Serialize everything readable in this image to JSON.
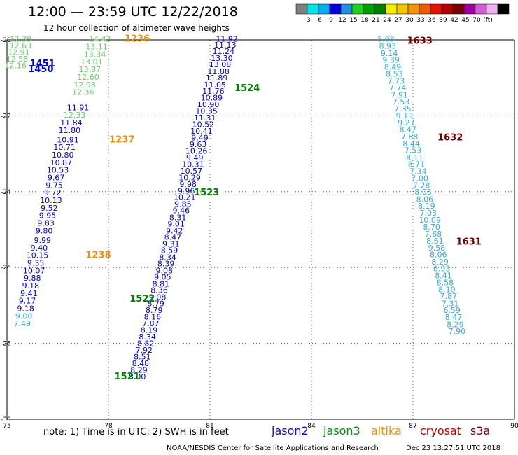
{
  "title": "12:00 — 23:59 UTC 12/22/2018",
  "subtitle": "12 hour collection of altimeter wave heights",
  "note": "note:  1) Time is in UTC;  2) SWH is in feet",
  "credit": "NOAA/NESDIS Center for Satellite Applications and Research",
  "timestamp": "Dec 23 13:27:51 UTC 2018",
  "satellites": [
    {
      "name": "jason2",
      "color": "#1010c8"
    },
    {
      "name": "jason3",
      "color": "#0a8a0a"
    },
    {
      "name": "altika",
      "color": "#f0900a"
    },
    {
      "name": "cryosat",
      "color": "#c00000"
    },
    {
      "name": "s3a",
      "color": "#7a0000"
    }
  ],
  "colorbar": {
    "colors": [
      "#7f7f7f",
      "#00e5e5",
      "#00b0f0",
      "#0000dc",
      "#2090e0",
      "#20d020",
      "#00a000",
      "#008000",
      "#f0f000",
      "#f0c800",
      "#f09600",
      "#f05a00",
      "#e01400",
      "#b40000",
      "#780000",
      "#a000a0",
      "#d060d0",
      "#f0b0f0",
      "#000000"
    ],
    "labels": [
      "3",
      "6",
      "9",
      "12",
      "15",
      "18",
      "21",
      "24",
      "27",
      "30",
      "33",
      "36",
      "39",
      "42",
      "45",
      "70",
      "(ft)"
    ]
  },
  "chart_data": {
    "type": "scatter",
    "xlabel": "",
    "ylabel": "",
    "xlim": [
      75,
      90
    ],
    "ylim": [
      -30,
      -20
    ],
    "xticks": [
      75,
      78,
      81,
      84,
      87,
      90
    ],
    "yticks": [
      -20,
      -22,
      -24,
      -26,
      -28,
      -30
    ],
    "grid": true,
    "series": [
      {
        "color": "#66cc66",
        "points": [
          [
            75.4,
            -20.05,
            "12.39"
          ],
          [
            75.4,
            -20.22,
            "12.63"
          ],
          [
            75.35,
            -20.4,
            "12.91"
          ],
          [
            75.3,
            -20.57,
            "12.58"
          ],
          [
            75.25,
            -20.75,
            "12.16"
          ]
        ]
      },
      {
        "color": "#66cc66",
        "points": [
          [
            77.75,
            -20.05,
            "14.42"
          ],
          [
            77.65,
            -20.25,
            "13.11"
          ],
          [
            77.6,
            -20.45,
            "13.34"
          ],
          [
            77.5,
            -20.65,
            "13.01"
          ],
          [
            77.45,
            -20.85,
            "13.87"
          ],
          [
            77.4,
            -21.05,
            "12.60"
          ],
          [
            77.3,
            -21.25,
            "12.98"
          ],
          [
            77.25,
            -21.45,
            "12.36"
          ],
          [
            77.0,
            -22.05,
            "12.33"
          ]
        ]
      },
      {
        "color": "#0000cc",
        "points": [
          [
            77.1,
            -21.85,
            "11.91"
          ],
          [
            76.9,
            -22.25,
            "11.84"
          ],
          [
            76.85,
            -22.45,
            "11.80"
          ],
          [
            76.8,
            -22.7,
            "10.91"
          ],
          [
            76.7,
            -22.9,
            "10.71"
          ],
          [
            76.65,
            -23.1,
            "10.80"
          ],
          [
            76.6,
            -23.3,
            "10.87"
          ],
          [
            76.5,
            -23.5,
            "10.53"
          ],
          [
            76.45,
            -23.7,
            "9.67"
          ],
          [
            76.4,
            -23.9,
            "9.75"
          ],
          [
            76.35,
            -24.1,
            "9.72"
          ],
          [
            76.3,
            -24.3,
            "10.13"
          ],
          [
            76.25,
            -24.5,
            "9.52"
          ],
          [
            76.2,
            -24.7,
            "9.95"
          ],
          [
            76.15,
            -24.9,
            "9.83"
          ],
          [
            76.1,
            -25.1,
            "9.80"
          ],
          [
            76.05,
            -25.35,
            "9.99"
          ],
          [
            75.95,
            -25.55,
            "9.40"
          ],
          [
            75.9,
            -25.75,
            "10.15"
          ],
          [
            75.85,
            -25.95,
            "9.35"
          ],
          [
            75.8,
            -26.15,
            "10.07"
          ],
          [
            75.75,
            -26.35,
            "9.88"
          ],
          [
            75.7,
            -26.55,
            "9.18"
          ],
          [
            75.65,
            -26.75,
            "9.41"
          ],
          [
            75.6,
            -26.95,
            "9.17"
          ],
          [
            75.55,
            -27.15,
            "9.18"
          ]
        ]
      },
      {
        "color": "#33aadd",
        "points": [
          [
            75.5,
            -27.35,
            "9.00"
          ],
          [
            75.45,
            -27.55,
            "7.49"
          ]
        ]
      },
      {
        "color": "#0000cc",
        "points": [
          [
            81.5,
            -20.05,
            "11.92"
          ],
          [
            81.45,
            -20.2,
            "11.13"
          ],
          [
            81.4,
            -20.37,
            "11.24"
          ],
          [
            81.35,
            -20.55,
            "13.30"
          ],
          [
            81.3,
            -20.72,
            "13.08"
          ],
          [
            81.25,
            -20.9,
            "11.88"
          ],
          [
            81.2,
            -21.07,
            "11.89"
          ],
          [
            81.15,
            -21.25,
            "11.05"
          ],
          [
            81.1,
            -21.42,
            "11.76"
          ],
          [
            81.05,
            -21.6,
            "10.89"
          ],
          [
            80.95,
            -21.77,
            "10.90"
          ],
          [
            80.9,
            -21.95,
            "10.35"
          ],
          [
            80.85,
            -22.12,
            "11.31"
          ],
          [
            80.8,
            -22.3,
            "10.52"
          ],
          [
            80.75,
            -22.47,
            "10.41"
          ],
          [
            80.7,
            -22.65,
            "9.49"
          ],
          [
            80.65,
            -22.82,
            "9.63"
          ],
          [
            80.6,
            -23.0,
            "10.26"
          ],
          [
            80.55,
            -23.17,
            "9.49"
          ],
          [
            80.5,
            -23.35,
            "10.31"
          ],
          [
            80.45,
            -23.52,
            "10.57"
          ],
          [
            80.4,
            -23.7,
            "10.29"
          ],
          [
            80.35,
            -23.87,
            "9.98"
          ],
          [
            80.3,
            -24.05,
            "9.96"
          ],
          [
            80.25,
            -24.22,
            "10.21"
          ],
          [
            80.2,
            -24.4,
            "9.85"
          ],
          [
            80.15,
            -24.57,
            "9.46"
          ],
          [
            80.05,
            -24.75,
            "8.31"
          ],
          [
            80.0,
            -24.92,
            "9.01"
          ],
          [
            79.95,
            -25.1,
            "9.42"
          ],
          [
            79.9,
            -25.27,
            "8.47"
          ],
          [
            79.85,
            -25.45,
            "9.31"
          ],
          [
            79.8,
            -25.62,
            "8.59"
          ],
          [
            79.75,
            -25.8,
            "8.34"
          ],
          [
            79.7,
            -25.97,
            "8.39"
          ],
          [
            79.65,
            -26.15,
            "9.08"
          ],
          [
            79.6,
            -26.32,
            "9.05"
          ],
          [
            79.55,
            -26.5,
            "8.81"
          ],
          [
            79.5,
            -26.67,
            "8.36"
          ],
          [
            79.45,
            -26.85,
            "9.08"
          ],
          [
            79.4,
            -27.02,
            "8.79"
          ],
          [
            79.35,
            -27.2,
            "8.79"
          ],
          [
            79.3,
            -27.37,
            "8.16"
          ],
          [
            79.25,
            -27.55,
            "7.87"
          ],
          [
            79.2,
            -27.72,
            "8.19"
          ],
          [
            79.15,
            -27.9,
            "8.34"
          ],
          [
            79.1,
            -28.07,
            "8.82"
          ],
          [
            79.05,
            -28.25,
            "7.92"
          ],
          [
            79.0,
            -28.42,
            "8.51"
          ],
          [
            78.95,
            -28.6,
            "8.48"
          ],
          [
            78.9,
            -28.77,
            "8.29"
          ],
          [
            78.85,
            -28.95,
            "8.00"
          ]
        ]
      },
      {
        "color": "#33aadd",
        "points": [
          [
            86.2,
            -20.05,
            "8.08"
          ],
          [
            86.25,
            -20.23,
            "8.93"
          ],
          [
            86.3,
            -20.42,
            "9.14"
          ],
          [
            86.35,
            -20.6,
            "9.39"
          ],
          [
            86.4,
            -20.78,
            "8.49"
          ],
          [
            86.45,
            -20.97,
            "8.53"
          ],
          [
            86.5,
            -21.15,
            "7.73"
          ],
          [
            86.55,
            -21.33,
            "7.74"
          ],
          [
            86.6,
            -21.52,
            "7.91"
          ],
          [
            86.65,
            -21.7,
            "7.53"
          ],
          [
            86.7,
            -21.88,
            "7.35"
          ],
          [
            86.75,
            -22.07,
            "9.19"
          ],
          [
            86.8,
            -22.25,
            "9.27"
          ],
          [
            86.85,
            -22.43,
            "8.47"
          ],
          [
            86.9,
            -22.62,
            "7.88"
          ],
          [
            86.95,
            -22.8,
            "8.44"
          ],
          [
            87.0,
            -22.98,
            "7.53"
          ],
          [
            87.05,
            -23.17,
            "8.11"
          ],
          [
            87.1,
            -23.35,
            "8.71"
          ],
          [
            87.15,
            -23.53,
            "7.34"
          ],
          [
            87.2,
            -23.72,
            "7.00"
          ],
          [
            87.25,
            -23.9,
            "7.28"
          ],
          [
            87.3,
            -24.08,
            "8.03"
          ],
          [
            87.35,
            -24.27,
            "8.06"
          ],
          [
            87.4,
            -24.45,
            "8.19"
          ],
          [
            87.45,
            -24.63,
            "7.03"
          ],
          [
            87.5,
            -24.82,
            "10.09"
          ],
          [
            87.55,
            -25.0,
            "8.70"
          ],
          [
            87.6,
            -25.18,
            "7.68"
          ],
          [
            87.65,
            -25.37,
            "8.61"
          ],
          [
            87.7,
            -25.55,
            "9.58"
          ],
          [
            87.75,
            -25.73,
            "8.06"
          ],
          [
            87.8,
            -25.92,
            "8.29"
          ],
          [
            87.85,
            -26.1,
            "6.93"
          ],
          [
            87.9,
            -26.28,
            "8.41"
          ],
          [
            87.95,
            -26.47,
            "8.58"
          ],
          [
            88.0,
            -26.65,
            "8.10"
          ],
          [
            88.05,
            -26.83,
            "7.87"
          ],
          [
            88.1,
            -27.02,
            "7.31"
          ],
          [
            88.15,
            -27.2,
            "6.59"
          ],
          [
            88.2,
            -27.38,
            "8.47"
          ],
          [
            88.25,
            -27.57,
            "8.29"
          ],
          [
            88.3,
            -27.75,
            "7.90"
          ]
        ]
      }
    ],
    "annotations": [
      {
        "x": 76.05,
        "y": -20.7,
        "text": "1451",
        "color": "#0000cc"
      },
      {
        "x": 76.0,
        "y": -20.85,
        "text": "1450",
        "color": "#0000cc"
      },
      {
        "x": 78.85,
        "y": -20.05,
        "text": "1236",
        "color": "#f0900a"
      },
      {
        "x": 78.4,
        "y": -22.7,
        "text": "1237",
        "color": "#f0900a"
      },
      {
        "x": 77.7,
        "y": -25.75,
        "text": "1238",
        "color": "#f0900a"
      },
      {
        "x": 82.1,
        "y": -21.35,
        "text": "1524",
        "color": "#008000"
      },
      {
        "x": 80.9,
        "y": -24.1,
        "text": "1523",
        "color": "#008000"
      },
      {
        "x": 79.0,
        "y": -26.9,
        "text": "1522",
        "color": "#008000"
      },
      {
        "x": 78.55,
        "y": -28.95,
        "text": "1521",
        "color": "#008000"
      },
      {
        "x": 87.2,
        "y": -20.1,
        "text": "1633",
        "color": "#780000"
      },
      {
        "x": 88.1,
        "y": -22.65,
        "text": "1632",
        "color": "#780000"
      },
      {
        "x": 88.65,
        "y": -25.4,
        "text": "1631",
        "color": "#780000"
      }
    ]
  }
}
